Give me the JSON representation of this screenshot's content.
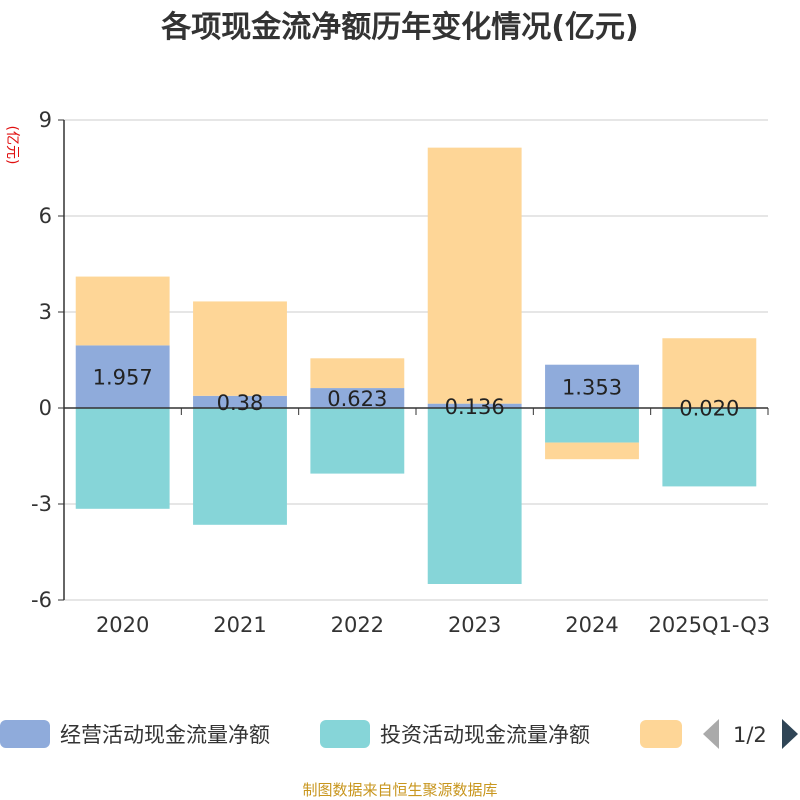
{
  "chart_data": {
    "type": "bar",
    "stacked": true,
    "title": "各项现金流净额历年变化情况(亿元)",
    "ylabel": "(亿元)",
    "ylim": [
      -6,
      9
    ],
    "yticks": [
      9,
      6,
      3,
      0,
      -3,
      -6
    ],
    "grid": true,
    "categories": [
      "2020",
      "2021",
      "2022",
      "2023",
      "2024",
      "2025Q1-Q3"
    ],
    "series": [
      {
        "name": "经营活动现金流量净额",
        "color": "#8fabdb",
        "values": [
          1.957,
          0.38,
          0.623,
          0.136,
          1.353,
          0.02
        ],
        "labels": [
          "1.957",
          "0.38",
          "0.623",
          "0.136",
          "1.353",
          "0.020"
        ]
      },
      {
        "name": "投资活动现金流量净额",
        "color": "#86d5d8",
        "values": [
          -3.15,
          -3.65,
          -2.05,
          -5.5,
          -1.08,
          -2.45
        ],
        "labels": []
      },
      {
        "name": "",
        "color": "#fed697",
        "values": [
          2.15,
          2.95,
          0.93,
          8.0,
          -0.52,
          2.16
        ],
        "labels": []
      }
    ]
  },
  "legend": {
    "items": [
      "经营活动现金流量净额",
      "投资活动现金流量净额",
      ""
    ],
    "page_indicator": "1/2",
    "prev_icon": "triangle-left-icon",
    "next_icon": "triangle-right-icon"
  },
  "footer": {
    "source": "制图数据来自恒生聚源数据库"
  }
}
